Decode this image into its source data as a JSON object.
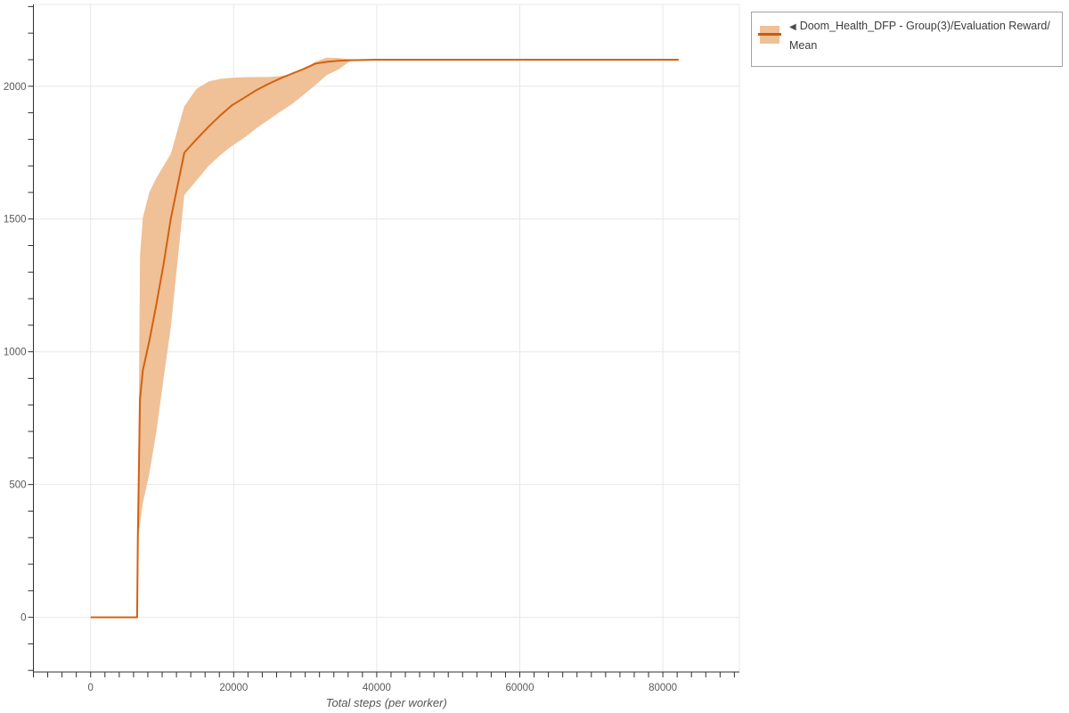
{
  "legend": {
    "collapse_icon": "◀",
    "series_label": "Doom_Health_DFP - Group(3)/Evaluation Reward/Mean"
  },
  "axes": {
    "x_title": "Total steps (per worker)",
    "x_tick_labels": [
      "0",
      "20000",
      "40000",
      "60000",
      "80000"
    ],
    "y_tick_labels": [
      "0",
      "500",
      "1000",
      "1500",
      "2000"
    ]
  },
  "colors": {
    "line": "#d2620e",
    "band": "#f0c096",
    "legend_line": "#c75c10",
    "grid": "#e7e7e7",
    "plot_border": "#eaeaea",
    "spine": "#2f2f2f",
    "tick_text": "#595959",
    "axis_title_text": "#555555"
  },
  "chart_data": {
    "type": "line",
    "title": "",
    "xlabel": "Total steps (per worker)",
    "ylabel": "",
    "grid": true,
    "legend_position": "top-right-outside",
    "x_ticks": [
      0,
      20000,
      40000,
      60000,
      80000
    ],
    "y_ticks": [
      0,
      500,
      1000,
      1500,
      2000
    ],
    "x_minor_step": 2000,
    "y_minor_step": 100,
    "x_range": [
      -8000,
      90700
    ],
    "y_range": [
      -206,
      2308
    ],
    "series": [
      {
        "name": "Doom_Health_DFP - Group(3)/Evaluation Reward/Mean",
        "color": "#d2620e",
        "band_color": "#f0c096",
        "steps": [
          0,
          3300,
          6500,
          6600,
          6900,
          7300,
          8200,
          9200,
          10200,
          11200,
          13100,
          14800,
          16500,
          18200,
          19800,
          21500,
          23100,
          24800,
          26400,
          28100,
          29700,
          31400,
          33000,
          34700,
          36300,
          39600,
          46200,
          52800,
          59400,
          66000,
          72600,
          79200,
          82200
        ],
        "mean": [
          0,
          0,
          0,
          300,
          820,
          930,
          1040,
          1180,
          1330,
          1500,
          1750,
          1800,
          1848,
          1892,
          1929,
          1957,
          1984,
          2008,
          2028,
          2047,
          2064,
          2085,
          2092,
          2096,
          2098,
          2100,
          2100,
          2100,
          2100,
          2100,
          2100,
          2100,
          2100
        ],
        "lower": [
          0,
          0,
          0,
          280,
          350,
          430,
          540,
          700,
          900,
          1090,
          1590,
          1645,
          1700,
          1742,
          1776,
          1806,
          1840,
          1872,
          1902,
          1932,
          1966,
          2004,
          2042,
          2064,
          2095,
          2100,
          2100,
          2100,
          2100,
          2100,
          2100,
          2100,
          2100
        ],
        "upper": [
          0,
          0,
          0,
          320,
          1360,
          1505,
          1600,
          1655,
          1700,
          1745,
          1925,
          1990,
          2018,
          2028,
          2032,
          2034,
          2035,
          2035,
          2038,
          2046,
          2060,
          2092,
          2108,
          2106,
          2102,
          2100,
          2100,
          2100,
          2100,
          2100,
          2100,
          2100,
          2100
        ]
      }
    ]
  }
}
